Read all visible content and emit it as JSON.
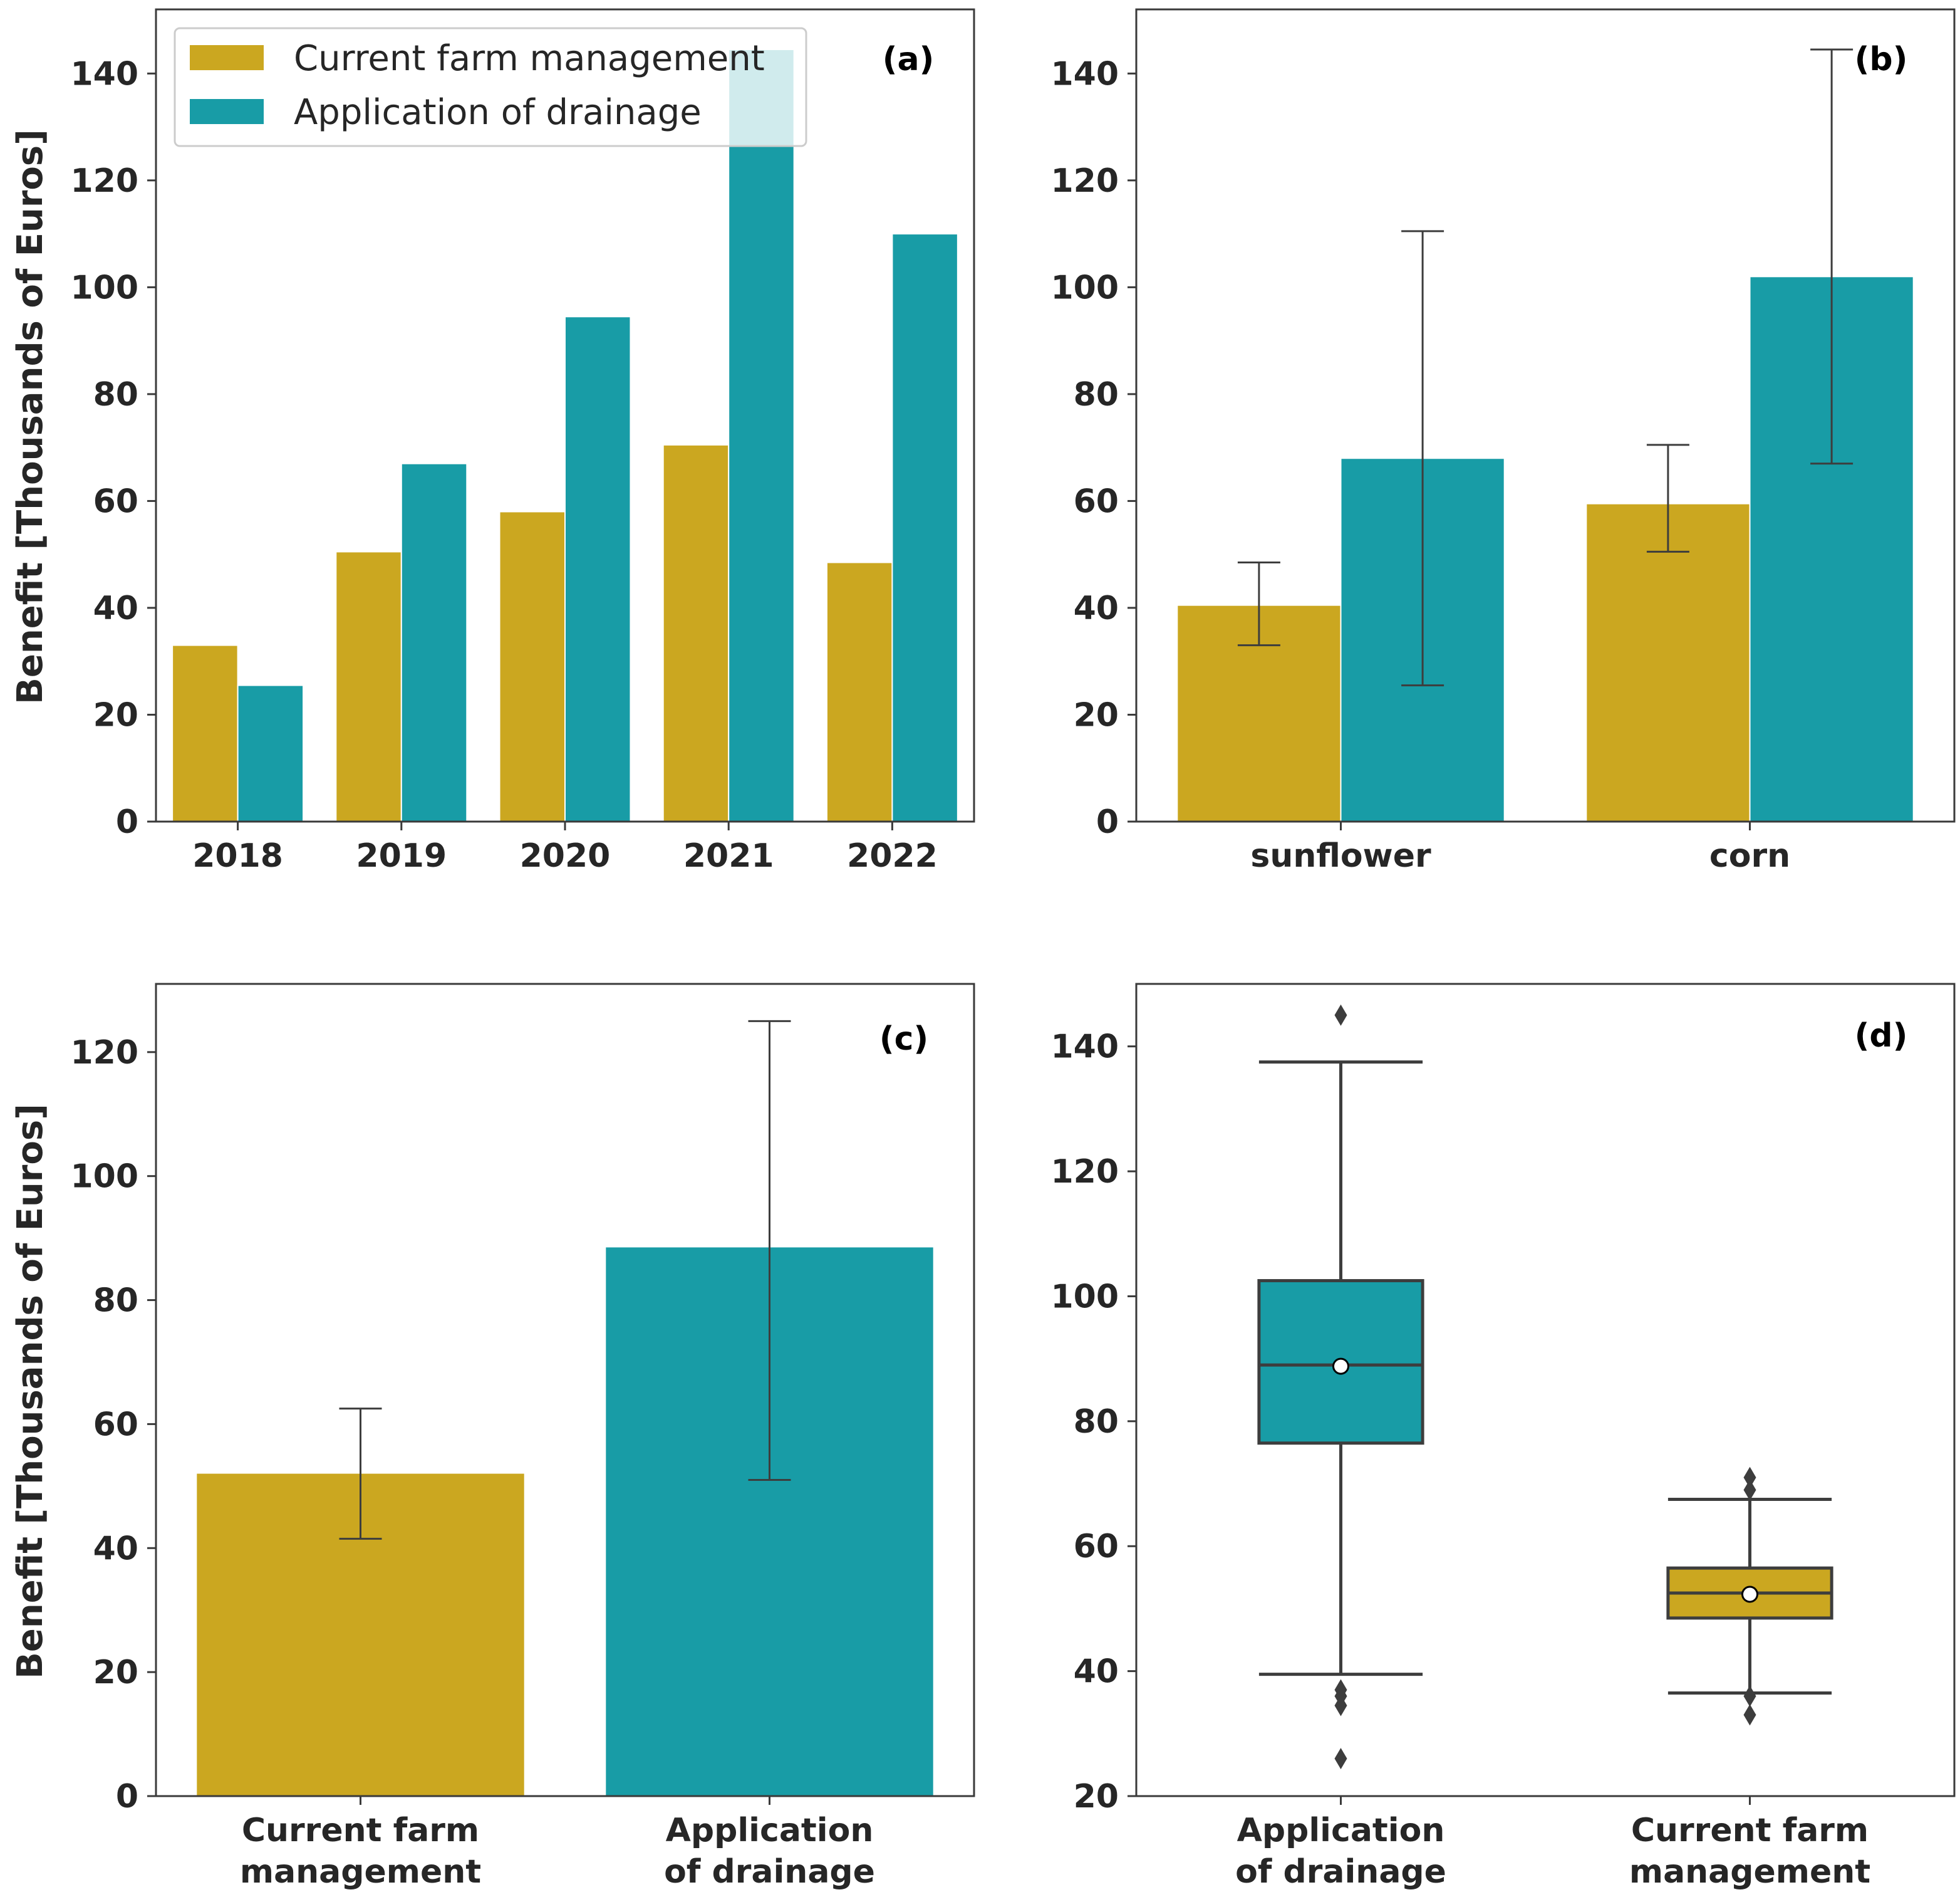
{
  "colors": {
    "current": "#CBA720",
    "drainage": "#189CA6",
    "axis": "#3a3a3a",
    "text": "#262626",
    "box_line": "#3d3d3d"
  },
  "legend": {
    "entries": [
      {
        "key": "current",
        "label": "Current farm management"
      },
      {
        "key": "drainage",
        "label": "Application of drainage"
      }
    ]
  },
  "chart_data": [
    {
      "id": "a",
      "panel_label": "(a)",
      "type": "bar",
      "ylabel": "Benefit [Thousands of Euros]",
      "ylim": [
        0,
        152
      ],
      "yticks": [
        "0",
        "20",
        "40",
        "60",
        "80",
        "100",
        "120",
        "140"
      ],
      "categories": [
        "2018",
        "2019",
        "2020",
        "2021",
        "2022"
      ],
      "series": [
        {
          "name": "Current farm management",
          "key": "current",
          "values": [
            33,
            50.5,
            58,
            70.5,
            48.5
          ]
        },
        {
          "name": "Application of drainage",
          "key": "drainage",
          "values": [
            25.5,
            67,
            94.5,
            144.5,
            110
          ]
        }
      ]
    },
    {
      "id": "b",
      "panel_label": "(b)",
      "type": "bar",
      "ylabel": "",
      "ylim": [
        0,
        152
      ],
      "yticks": [
        "0",
        "20",
        "40",
        "60",
        "80",
        "100",
        "120",
        "140"
      ],
      "categories": [
        "sunflower",
        "corn"
      ],
      "series": [
        {
          "name": "Current farm management",
          "key": "current",
          "values": [
            40.5,
            59.5
          ],
          "err_low": [
            33,
            50.5
          ],
          "err_high": [
            48.5,
            70.5
          ]
        },
        {
          "name": "Application of drainage",
          "key": "drainage",
          "values": [
            68,
            102
          ],
          "err_low": [
            25.5,
            67
          ],
          "err_high": [
            110.5,
            144.5
          ]
        }
      ]
    },
    {
      "id": "c",
      "panel_label": "(c)",
      "type": "bar",
      "ylabel": "Benefit [Thousands of Euros]",
      "ylim": [
        0,
        131
      ],
      "yticks": [
        "0",
        "20",
        "40",
        "60",
        "80",
        "100",
        "120"
      ],
      "categories": [
        "Current farm\nmanagement",
        "Application\nof drainage"
      ],
      "bars": [
        {
          "key": "current",
          "value": 52,
          "err_low": 41.5,
          "err_high": 62.5
        },
        {
          "key": "drainage",
          "value": 88.5,
          "err_low": 51,
          "err_high": 125
        }
      ]
    },
    {
      "id": "d",
      "panel_label": "(d)",
      "type": "box",
      "ylabel": "",
      "ylim": [
        20,
        150
      ],
      "yticks": [
        "20",
        "40",
        "60",
        "80",
        "100",
        "120",
        "140"
      ],
      "categories": [
        "Application\nof drainage",
        "Current farm\nmanagement"
      ],
      "boxes": [
        {
          "key": "drainage",
          "whisker_low": 39.5,
          "q1": 76.5,
          "median": 89,
          "q3": 102.5,
          "whisker_high": 137.5,
          "mean": 88.8,
          "outliers": [
            145,
            37,
            36,
            34.5,
            26
          ]
        },
        {
          "key": "current",
          "whisker_low": 36.5,
          "q1": 48.5,
          "median": 52.5,
          "q3": 56.5,
          "whisker_high": 67.5,
          "mean": 52.3,
          "outliers": [
            71,
            69,
            36,
            33
          ]
        }
      ]
    }
  ]
}
